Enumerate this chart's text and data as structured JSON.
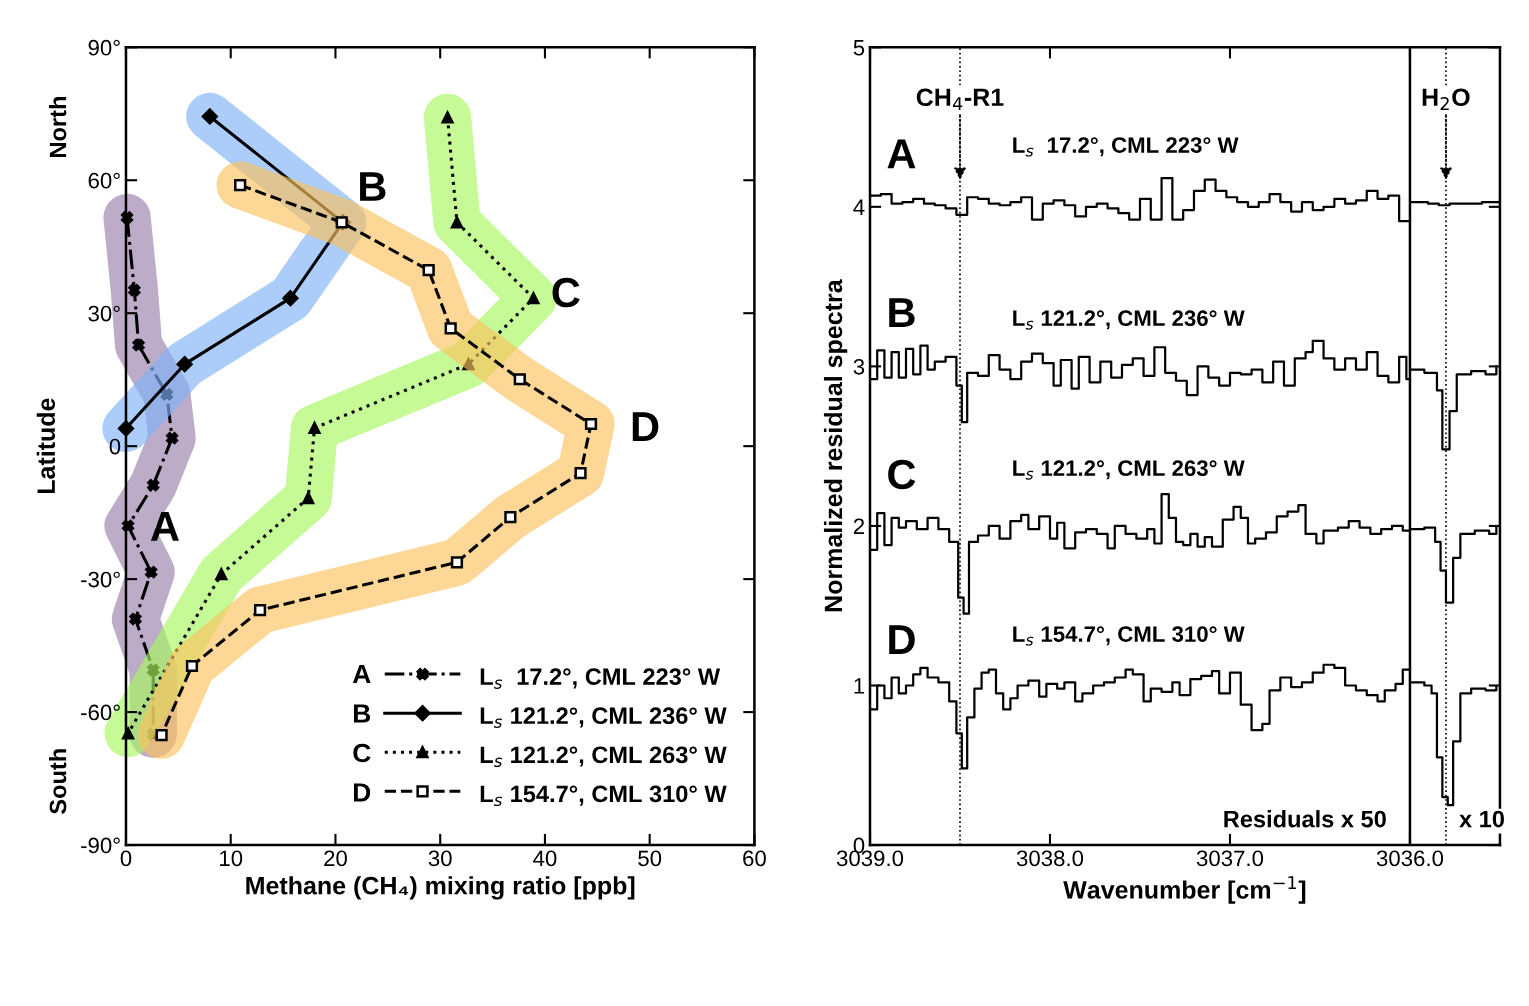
{
  "chart_data": [
    {
      "type": "line",
      "xlabel": "Methane (CH₄) mixing ratio [ppb]",
      "ylabel": "Latitude",
      "xlim": [
        0,
        60
      ],
      "xticks": [
        0,
        10,
        20,
        30,
        40,
        50,
        60
      ],
      "ylim": [
        -90,
        90
      ],
      "yticks": [
        {
          "value": 90,
          "label": "90°"
        },
        {
          "value": 60,
          "label": "60°"
        },
        {
          "value": 30,
          "label": "30°"
        },
        {
          "value": 0,
          "label": "0"
        },
        {
          "value": -30,
          "label": "-30°"
        },
        {
          "value": -60,
          "label": "-60°"
        },
        {
          "value": -90,
          "label": "-90°"
        }
      ],
      "grid": false,
      "legend": "bottom right",
      "series": [
        {
          "name": "L$_{s}$  17.2°, CML 223° W",
          "color": "#000000",
          "line_style": "dashdot",
          "marker": "cross",
          "x": [
            0.1,
            0.8,
            1.2,
            3.9,
            4.4,
            2.6,
            0.2,
            2.4,
            0.9,
            2.6,
            2.6
          ],
          "values": [
            51.6,
            35.2,
            22.8,
            11.7,
            1.8,
            -8.8,
            -18,
            -28.4,
            -39,
            -50.5,
            -65
          ]
        },
        {
          "name": "L$_{s}$ 121.2°, CML 236° W",
          "color": "#000000",
          "line_style": "solid",
          "marker": "diamond",
          "x": [
            8.0,
            20.7,
            15.7,
            5.6,
            0
          ],
          "values": [
            74.4,
            50.5,
            33.4,
            18.5,
            4
          ]
        },
        {
          "name": "L$_{s}$ 121.2°, CML 263° W",
          "color": "#000000",
          "line_style": "dotted",
          "marker": "triangle",
          "x": [
            30.7,
            31.6,
            38.9,
            32.7,
            18.0,
            17.4,
            9.1,
            0.2
          ],
          "values": [
            74.2,
            50.5,
            33.4,
            18.5,
            4.1,
            -11.7,
            -28.9,
            -64.8
          ]
        },
        {
          "name": "L$_{s}$ 154.7°, CML 310° W",
          "color": "#000000",
          "line_style": "dashed",
          "marker": "square",
          "x": [
            10.9,
            20.6,
            28.9,
            31.0,
            37.6,
            44.4,
            43.4,
            36.7,
            31.6,
            12.8,
            6.3,
            3.4
          ],
          "values": [
            58.9,
            50.5,
            39.7,
            26.6,
            15.1,
            5,
            -6.1,
            -16,
            -26.2,
            -37,
            -49.6,
            -65.2
          ]
        }
      ],
      "annotations": [
        "A",
        "B",
        "C",
        "D",
        "North",
        "South"
      ]
    },
    {
      "type": "step",
      "xlabel": "Wavenumber [cm$^{−1}$]",
      "ylabel": "Normalized residual spectra",
      "xlim": [
        3039.0,
        3035.5
      ],
      "xticks": [
        {
          "value": 3039,
          "label": "3039.0"
        },
        {
          "value": 3038,
          "label": "3038.0"
        },
        {
          "value": 3037,
          "label": "3037.0"
        },
        {
          "value": 3036,
          "label": "3036.0"
        }
      ],
      "ylim": [
        0,
        5
      ],
      "yticks": [
        0,
        1,
        2,
        3,
        4,
        5
      ],
      "grid": false,
      "marker": "none",
      "series": [
        {
          "color": "#000000",
          "x": [
            3039.0,
            3038.94,
            3038.88,
            3038.82,
            3038.76,
            3038.7,
            3038.64,
            3038.58,
            3038.52,
            3038.46,
            3038.4,
            3038.34,
            3038.28,
            3038.22,
            3038.16,
            3038.1,
            3038.04,
            3037.98,
            3037.92,
            3037.86,
            3037.8,
            3037.74,
            3037.68,
            3037.62,
            3037.56,
            3037.5,
            3037.44,
            3037.38,
            3037.32,
            3037.26,
            3037.2,
            3037.14,
            3037.08,
            3037.02,
            3036.96,
            3036.9,
            3036.84,
            3036.78,
            3036.72,
            3036.66,
            3036.6,
            3036.54,
            3036.48,
            3036.42,
            3036.36,
            3036.3,
            3036.24,
            3036.18,
            3036.12,
            3036.06,
            3036.0,
            3035.99,
            3035.9,
            3035.84,
            3035.78,
            3035.7,
            3035.6,
            3035.5
          ],
          "values": [
            4.07,
            4.08,
            4.02,
            4.03,
            4.05,
            4.02,
            4.01,
            3.99,
            3.95,
            4.06,
            4.05,
            4.02,
            4.01,
            4.03,
            4.06,
            3.92,
            4.02,
            4.04,
            4.01,
            3.94,
            4.0,
            4.02,
            3.99,
            3.96,
            3.92,
            4.05,
            3.92,
            4.18,
            3.92,
            3.98,
            4.1,
            4.17,
            4.1,
            4.06,
            4.03,
            4.0,
            4.03,
            4.08,
            4.03,
            3.97,
            4.03,
            3.98,
            4.0,
            4.05,
            4.02,
            4.04,
            4.1,
            4.05,
            4.07,
            3.91,
            null,
            4.03,
            4.02,
            4.01,
            4.02,
            4.02,
            4.03,
            4.04
          ]
        },
        {
          "color": "#000000",
          "x": [
            3039.0,
            3038.96,
            3038.92,
            3038.88,
            3038.84,
            3038.8,
            3038.76,
            3038.72,
            3038.68,
            3038.64,
            3038.58,
            3038.52,
            3038.49,
            3038.46,
            3038.4,
            3038.34,
            3038.28,
            3038.22,
            3038.16,
            3038.1,
            3038.04,
            3037.98,
            3037.94,
            3037.88,
            3037.84,
            3037.78,
            3037.72,
            3037.66,
            3037.6,
            3037.54,
            3037.48,
            3037.42,
            3037.36,
            3037.3,
            3037.24,
            3037.18,
            3037.12,
            3037.06,
            3037.0,
            3036.94,
            3036.88,
            3036.82,
            3036.76,
            3036.7,
            3036.64,
            3036.58,
            3036.54,
            3036.48,
            3036.42,
            3036.36,
            3036.3,
            3036.24,
            3036.18,
            3036.12,
            3036.06,
            3036.02,
            3036.0,
            3035.99,
            3035.92,
            3035.85,
            3035.82,
            3035.78,
            3035.74,
            3035.66,
            3035.58,
            3035.52
          ],
          "values": [
            2.92,
            3.1,
            2.93,
            3.09,
            2.93,
            3.11,
            2.95,
            3.13,
            2.98,
            3.03,
            3.06,
            2.88,
            2.65,
            2.96,
            2.94,
            3.07,
            2.98,
            2.92,
            3.03,
            3.08,
            3.02,
            2.88,
            3.04,
            2.86,
            3.06,
            2.9,
            3.03,
            2.93,
            3.01,
            3.05,
            2.94,
            3.12,
            2.96,
            2.91,
            2.82,
            3.0,
            2.93,
            2.88,
            2.96,
            2.95,
            2.98,
            2.9,
            3.03,
            2.88,
            3.05,
            3.09,
            3.16,
            3.05,
            2.98,
            3.05,
            2.98,
            3.09,
            2.94,
            2.9,
            3.06,
            2.92,
            null,
            2.98,
            2.96,
            2.85,
            2.48,
            2.72,
            2.95,
            2.97,
            2.95,
            3.0
          ]
        },
        {
          "color": "#000000",
          "x": [
            3039.0,
            3038.96,
            3038.92,
            3038.88,
            3038.84,
            3038.8,
            3038.74,
            3038.68,
            3038.62,
            3038.56,
            3038.51,
            3038.48,
            3038.45,
            3038.4,
            3038.34,
            3038.28,
            3038.22,
            3038.16,
            3038.12,
            3038.06,
            3038.0,
            3037.96,
            3037.92,
            3037.86,
            3037.8,
            3037.74,
            3037.68,
            3037.64,
            3037.58,
            3037.52,
            3037.46,
            3037.42,
            3037.38,
            3037.34,
            3037.3,
            3037.26,
            3037.22,
            3037.18,
            3037.14,
            3037.1,
            3037.04,
            3036.98,
            3036.94,
            3036.9,
            3036.86,
            3036.8,
            3036.74,
            3036.68,
            3036.62,
            3036.58,
            3036.52,
            3036.48,
            3036.4,
            3036.34,
            3036.28,
            3036.22,
            3036.16,
            3036.1,
            3036.04,
            3036.0,
            3035.99,
            3035.92,
            3035.86,
            3035.83,
            3035.8,
            3035.76,
            3035.72,
            3035.64,
            3035.56,
            3035.52
          ],
          "values": [
            1.85,
            2.08,
            1.88,
            2.05,
            1.99,
            2.03,
            1.98,
            2.05,
            1.98,
            1.9,
            1.55,
            1.45,
            1.9,
            1.94,
            2.0,
            1.92,
            2.03,
            2.07,
            1.98,
            2.06,
            1.92,
            2.02,
            1.86,
            1.96,
            1.98,
            1.95,
            1.86,
            2.0,
            1.95,
            1.92,
            1.98,
            1.89,
            2.2,
            2.05,
            1.9,
            1.88,
            1.95,
            1.87,
            1.93,
            1.87,
            2.04,
            2.12,
            2.05,
            1.89,
            1.92,
            1.96,
            2.06,
            2.09,
            2.13,
            1.95,
            1.89,
            1.97,
            1.99,
            2.03,
            1.99,
            1.95,
            1.98,
            2.0,
            1.97,
            null,
            1.98,
            1.99,
            1.9,
            1.72,
            1.52,
            1.8,
            1.95,
            1.97,
            1.95,
            1.99
          ]
        },
        {
          "color": "#000000",
          "x": [
            3039.0,
            3038.96,
            3038.92,
            3038.88,
            3038.84,
            3038.8,
            3038.76,
            3038.72,
            3038.68,
            3038.62,
            3038.56,
            3038.52,
            3038.49,
            3038.46,
            3038.42,
            3038.38,
            3038.34,
            3038.3,
            3038.26,
            3038.22,
            3038.18,
            3038.12,
            3038.06,
            3038.02,
            3037.96,
            3037.92,
            3037.86,
            3037.82,
            3037.76,
            3037.7,
            3037.64,
            3037.58,
            3037.54,
            3037.48,
            3037.44,
            3037.38,
            3037.32,
            3037.28,
            3037.22,
            3037.16,
            3037.1,
            3037.06,
            3037.0,
            3036.94,
            3036.88,
            3036.82,
            3036.78,
            3036.72,
            3036.66,
            3036.6,
            3036.54,
            3036.48,
            3036.42,
            3036.36,
            3036.3,
            3036.24,
            3036.18,
            3036.14,
            3036.08,
            3036.04,
            3036.0,
            3035.99,
            3035.92,
            3035.88,
            3035.85,
            3035.82,
            3035.79,
            3035.76,
            3035.72,
            3035.66,
            3035.58,
            3035.52
          ],
          "values": [
            0.85,
            1.0,
            0.92,
            1.05,
            0.95,
            1.0,
            1.07,
            1.11,
            1.05,
            1.02,
            0.9,
            0.7,
            0.48,
            0.8,
            0.98,
            1.08,
            1.1,
            0.95,
            0.85,
            0.92,
            1.0,
            1.03,
            0.93,
            1.01,
            0.98,
            1.02,
            0.9,
            0.95,
            1.0,
            1.02,
            1.05,
            1.1,
            1.07,
            0.9,
            0.98,
            0.96,
            1.02,
            0.94,
            1.04,
            1.06,
            1.09,
            0.95,
            1.08,
            0.88,
            0.72,
            0.76,
            0.97,
            1.05,
            0.99,
            1.02,
            1.08,
            1.13,
            1.11,
            1.0,
            0.97,
            0.94,
            0.9,
            0.97,
            1.01,
            1.1,
            null,
            1.02,
            1.0,
            0.95,
            0.55,
            0.3,
            0.25,
            0.65,
            0.95,
            0.98,
            0.97,
            0.99
          ]
        }
      ],
      "ref_lines": [
        {
          "axis": "x",
          "value": 3036.0,
          "color": "#000000",
          "line_style": "solid"
        },
        {
          "axis": "x",
          "value": 3038.5,
          "color": "#000000",
          "line_style": "dotted"
        },
        {
          "axis": "x",
          "value": 3035.8,
          "color": "#000000",
          "line_style": "dotted"
        }
      ],
      "annotations": [
        {
          "text": "CH$_{4}$-R1",
          "x": 3038.5,
          "y": 4.6
        },
        {
          "text": "H$_{2}$O",
          "x": 3035.8,
          "y": 4.6
        },
        "A",
        "L$_{s}$  17.2°, CML 223° W",
        "B",
        "L$_{s}$ 121.2°, CML 236° W",
        "C",
        "L$_{s}$ 121.2°, CML 263° W",
        "D",
        "L$_{s}$ 154.7°, CML 310° W",
        "Residuals x 50",
        "x 10"
      ]
    }
  ]
}
